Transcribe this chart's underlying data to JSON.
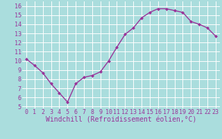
{
  "x": [
    0,
    1,
    2,
    3,
    4,
    5,
    6,
    7,
    8,
    9,
    10,
    11,
    12,
    13,
    14,
    15,
    16,
    17,
    18,
    19,
    20,
    21,
    22,
    23
  ],
  "y": [
    10.2,
    9.5,
    8.7,
    7.5,
    6.5,
    5.5,
    7.5,
    8.2,
    8.4,
    8.8,
    10.0,
    11.5,
    12.9,
    13.6,
    14.7,
    15.3,
    15.7,
    15.7,
    15.5,
    15.3,
    14.3,
    14.0,
    13.6,
    12.7
  ],
  "line_color": "#993399",
  "marker": "D",
  "marker_size": 2.0,
  "xlabel": "Windchill (Refroidissement éolien,°C)",
  "xlabel_fontsize": 7,
  "xlim": [
    -0.5,
    23.5
  ],
  "ylim": [
    4.8,
    16.5
  ],
  "yticks": [
    5,
    6,
    7,
    8,
    9,
    10,
    11,
    12,
    13,
    14,
    15,
    16
  ],
  "xticks": [
    0,
    1,
    2,
    3,
    4,
    5,
    6,
    7,
    8,
    9,
    10,
    11,
    12,
    13,
    14,
    15,
    16,
    17,
    18,
    19,
    20,
    21,
    22,
    23
  ],
  "bg_color": "#aadddd",
  "grid_color": "#ffffff",
  "tick_label_color": "#993399",
  "tick_label_fontsize": 6,
  "line_width": 1.0
}
